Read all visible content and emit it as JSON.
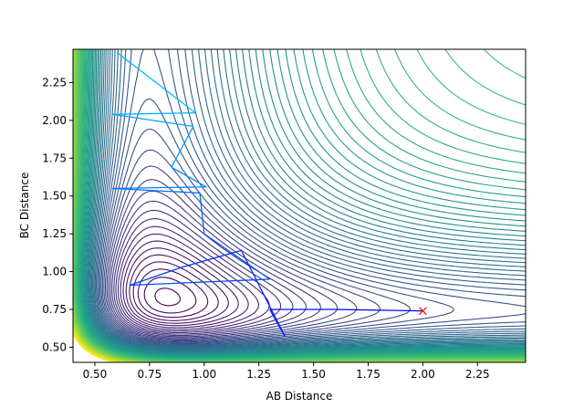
{
  "chart_data": {
    "type": "contour",
    "xlabel": "AB Distance",
    "ylabel": "BC Distance",
    "xlim": [
      0.4,
      2.47
    ],
    "ylim": [
      0.4,
      2.47
    ],
    "xticks": [
      "0.50",
      "0.75",
      "1.00",
      "1.25",
      "1.50",
      "1.75",
      "2.00",
      "2.25"
    ],
    "yticks": [
      "0.50",
      "0.75",
      "1.00",
      "1.25",
      "1.50",
      "1.75",
      "2.00",
      "2.25"
    ],
    "colormap": "viridis",
    "colors": {
      "low": "#440154",
      "high": "#fde725",
      "trajectory_start": "#00bfff",
      "trajectory_end": "#0000ff",
      "marker": "#ff0000"
    },
    "trajectory": [
      {
        "x": 0.6,
        "y": 2.45
      },
      {
        "x": 0.96,
        "y": 2.05
      },
      {
        "x": 0.58,
        "y": 2.04
      },
      {
        "x": 0.95,
        "y": 1.96
      },
      {
        "x": 0.85,
        "y": 1.69
      },
      {
        "x": 1.01,
        "y": 1.56
      },
      {
        "x": 0.58,
        "y": 1.55
      },
      {
        "x": 0.98,
        "y": 1.52
      },
      {
        "x": 1.0,
        "y": 1.25
      },
      {
        "x": 1.3,
        "y": 0.95
      },
      {
        "x": 0.66,
        "y": 0.91
      },
      {
        "x": 0.9,
        "y": 1.03
      },
      {
        "x": 1.17,
        "y": 1.14
      },
      {
        "x": 1.37,
        "y": 0.57
      },
      {
        "x": 1.3,
        "y": 0.75
      },
      {
        "x": 1.6,
        "y": 0.75
      },
      {
        "x": 2.0,
        "y": 0.74
      }
    ],
    "marker": {
      "x": 2.0,
      "y": 0.74,
      "symbol": "x"
    }
  }
}
